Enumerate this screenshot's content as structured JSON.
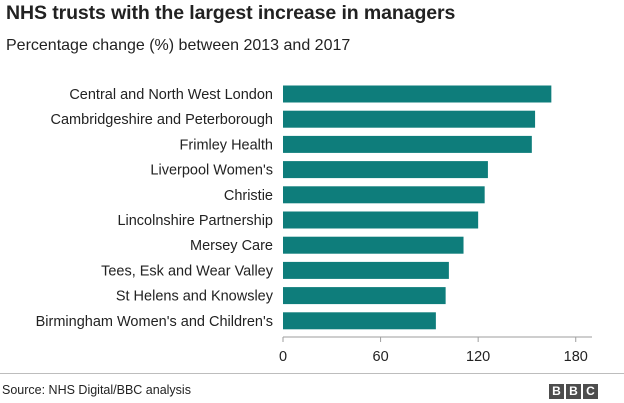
{
  "title": "NHS trusts with the largest increase in managers",
  "subtitle": "Percentage change (%) between 2013 and 2017",
  "source": "Source: NHS Digital/BBC analysis",
  "logo": [
    "B",
    "B",
    "C"
  ],
  "colors": {
    "bar": "#0e7d7b",
    "axis": "#9e9e9e",
    "text": "#222222"
  },
  "chart_data": {
    "type": "bar",
    "orientation": "horizontal",
    "title": "NHS trusts with the largest increase in managers",
    "subtitle": "Percentage change (%) between 2013 and 2017",
    "xlabel": "",
    "ylabel": "",
    "xlim": [
      0,
      190
    ],
    "ticks": [
      0,
      60,
      120,
      180
    ],
    "grid": false,
    "categories": [
      "Central and North West London",
      "Cambridgeshire and Peterborough",
      "Frimley Health",
      "Liverpool Women's",
      "Christie",
      "Lincolnshire Partnership",
      "Mersey Care",
      "Tees, Esk and Wear Valley",
      "St Helens and Knowsley",
      "Birmingham Women's and Children's"
    ],
    "values": [
      165,
      155,
      153,
      126,
      124,
      120,
      111,
      102,
      100,
      94
    ]
  }
}
